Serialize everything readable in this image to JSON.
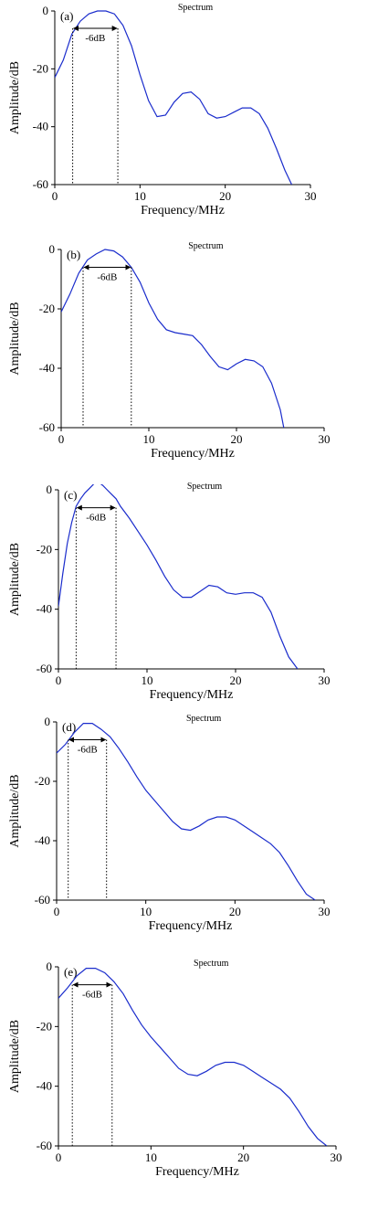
{
  "colors": {
    "line": "#1a2ccc",
    "axis": "#000000"
  },
  "chart_data": [
    {
      "type": "line",
      "panel_label": "(a)",
      "title": "Spectrum",
      "xlabel": "Frequency/MHz",
      "ylabel": "Amplitude/dB",
      "xlim": [
        0,
        30
      ],
      "ylim": [
        -60,
        0
      ],
      "xticks": [
        "0",
        "10",
        "20",
        "30"
      ],
      "yticks": [
        "0",
        "-20",
        "-40",
        "-60"
      ],
      "grid": false,
      "bandwidth": {
        "label": "-6dB",
        "level": -6,
        "f_low": 2.1,
        "f_high": 7.4
      },
      "series": [
        {
          "x": [
            0,
            1,
            2,
            3,
            4,
            5,
            6,
            7,
            8,
            9,
            10,
            11,
            12,
            13,
            14,
            15,
            16,
            17,
            18,
            19,
            20,
            21,
            22,
            23,
            24,
            25,
            26,
            27,
            27.8
          ],
          "y": [
            -23,
            -17,
            -8,
            -3.5,
            -1,
            0,
            0,
            -1,
            -5,
            -12,
            -22,
            -31,
            -36.5,
            -36,
            -31.5,
            -28.5,
            -28,
            -30.5,
            -35.5,
            -37,
            -36.5,
            -35,
            -33.5,
            -33.5,
            -35.5,
            -40.5,
            -47.5,
            -55,
            -60
          ]
        }
      ]
    },
    {
      "type": "line",
      "panel_label": "(b)",
      "title": "Spectrum",
      "xlabel": "Frequency/MHz",
      "ylabel": "Amplitude/dB",
      "xlim": [
        0,
        30
      ],
      "ylim": [
        -60,
        0
      ],
      "xticks": [
        "0",
        "10",
        "20",
        "30"
      ],
      "yticks": [
        "0",
        "-20",
        "-40",
        "-60"
      ],
      "grid": false,
      "bandwidth": {
        "label": "-6dB",
        "level": -6,
        "f_low": 2.5,
        "f_high": 8.0
      },
      "series": [
        {
          "x": [
            0,
            1,
            2,
            3,
            4,
            5,
            6,
            7,
            8,
            9,
            10,
            11,
            12,
            13,
            14,
            15,
            16,
            17,
            18,
            19,
            20,
            21,
            22,
            23,
            24,
            25,
            25.4
          ],
          "y": [
            -21,
            -15,
            -8,
            -3.5,
            -1.5,
            0,
            -0.5,
            -2.5,
            -6,
            -11,
            -18,
            -23.5,
            -27,
            -28,
            -28.5,
            -29,
            -32,
            -36,
            -39.5,
            -40.5,
            -38.5,
            -37,
            -37.5,
            -39.5,
            -45,
            -54,
            -60
          ]
        }
      ]
    },
    {
      "type": "line",
      "panel_label": "(c)",
      "title": "Spectrum",
      "xlabel": "Frequency/MHz",
      "ylabel": "Amplitude/dB",
      "xlim": [
        0,
        30
      ],
      "ylim": [
        -60,
        0
      ],
      "xticks": [
        "0",
        "10",
        "20",
        "30"
      ],
      "yticks": [
        "0",
        "-20",
        "-40",
        "-60"
      ],
      "grid": false,
      "bandwidth": {
        "label": "-6dB",
        "level": -6,
        "f_low": 2.0,
        "f_high": 6.5
      },
      "series": [
        {
          "x": [
            0,
            0.5,
            1,
            1.5,
            2,
            2.5,
            3,
            3.5,
            4,
            4.5,
            5,
            5.5,
            6,
            6.5,
            7,
            8,
            9,
            10,
            11,
            12,
            13,
            14,
            15,
            16,
            17,
            18,
            19,
            20,
            21,
            22,
            23,
            24,
            25,
            26,
            27
          ],
          "y": [
            -39,
            -28,
            -18,
            -11,
            -5.5,
            -3,
            -1,
            0.5,
            2,
            2.5,
            1.5,
            0,
            -1.5,
            -3,
            -5.5,
            -9.5,
            -14,
            -18.5,
            -23.5,
            -29,
            -33.5,
            -36,
            -36,
            -34,
            -32,
            -32.5,
            -34.5,
            -35,
            -34.5,
            -34.5,
            -36,
            -41,
            -49,
            -56,
            -60
          ]
        }
      ]
    },
    {
      "type": "line",
      "panel_label": "(d)",
      "title": "Spectrum",
      "xlabel": "Frequency/MHz",
      "ylabel": "Amplitude/dB",
      "xlim": [
        0,
        30
      ],
      "ylim": [
        -60,
        0
      ],
      "xticks": [
        "0",
        "10",
        "20",
        "30"
      ],
      "yticks": [
        "0",
        "-20",
        "-40",
        "-60"
      ],
      "grid": false,
      "bandwidth": {
        "label": "-6dB",
        "level": -6,
        "f_low": 1.3,
        "f_high": 5.6
      },
      "series": [
        {
          "x": [
            0,
            1,
            2,
            3,
            4,
            5,
            6,
            7,
            8,
            9,
            10,
            11,
            12,
            13,
            14,
            15,
            16,
            17,
            18,
            19,
            20,
            21,
            22,
            23,
            24,
            25,
            26,
            27,
            28,
            29
          ],
          "y": [
            -10.5,
            -7.5,
            -3.5,
            -0.5,
            -0.5,
            -2.5,
            -5,
            -9,
            -13.5,
            -18.5,
            -23,
            -26.5,
            -30,
            -33.5,
            -36,
            -36.5,
            -35,
            -33,
            -32,
            -32,
            -33,
            -35,
            -37,
            -39,
            -41,
            -44,
            -48.5,
            -53.5,
            -58,
            -60
          ]
        }
      ]
    },
    {
      "type": "line",
      "panel_label": "(e)",
      "title": "Spectrum",
      "xlabel": "Frequency/MHz",
      "ylabel": "Amplitude/dB",
      "xlim": [
        0,
        30
      ],
      "ylim": [
        -60,
        0
      ],
      "xticks": [
        "0",
        "10",
        "20",
        "30"
      ],
      "yticks": [
        "0",
        "-20",
        "-40",
        "-60"
      ],
      "grid": false,
      "bandwidth": {
        "label": "-6dB",
        "level": -6,
        "f_low": 1.5,
        "f_high": 5.8
      },
      "series": [
        {
          "x": [
            0,
            1,
            2,
            3,
            4,
            5,
            6,
            7,
            8,
            9,
            10,
            11,
            12,
            13,
            14,
            15,
            16,
            17,
            18,
            19,
            20,
            21,
            22,
            23,
            24,
            25,
            26,
            27,
            28,
            29
          ],
          "y": [
            -10.5,
            -7,
            -3,
            -0.5,
            -0.5,
            -2,
            -5,
            -9,
            -14.5,
            -19.5,
            -23.5,
            -27,
            -30.5,
            -34,
            -36,
            -36.5,
            -35,
            -33,
            -32,
            -32,
            -33,
            -35,
            -37,
            -39,
            -41,
            -44,
            -48.5,
            -53.5,
            -57.5,
            -60
          ]
        }
      ]
    }
  ]
}
